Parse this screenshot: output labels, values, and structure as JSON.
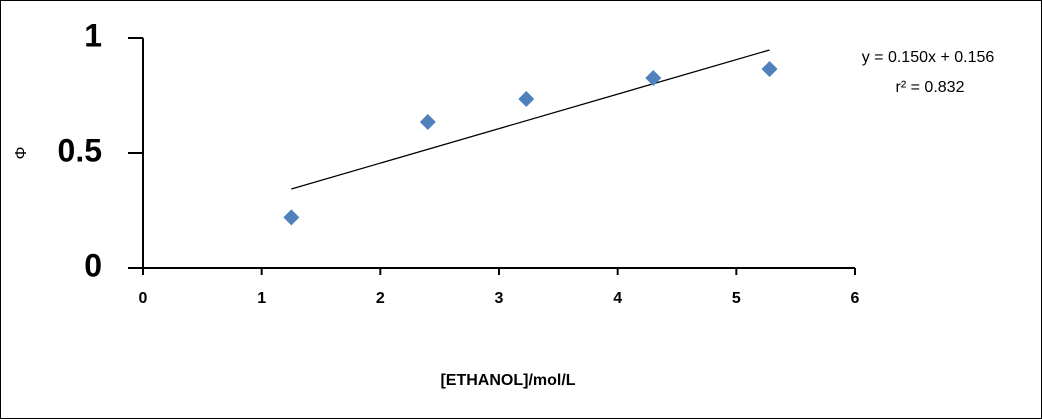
{
  "chart_data": {
    "type": "scatter",
    "x_label": "[ETHANOL]/mol/L",
    "y_label": "Φ",
    "series": [
      {
        "name": "Φ",
        "color": "#4f81bd",
        "x": [
          1.25,
          2.4,
          3.23,
          4.3,
          5.28
        ],
        "values": [
          0.22,
          0.635,
          0.735,
          0.826,
          0.865
        ]
      }
    ],
    "trendline": {
      "slope": 0.15,
      "intercept": 0.156,
      "equation": "y = 0.150x + 0.156",
      "r_squared": "r² = 0.832"
    },
    "xlim": [
      0,
      6
    ],
    "xticks": [
      0,
      1,
      2,
      3,
      4,
      5,
      6
    ],
    "ylim": [
      0,
      1
    ],
    "yticks": [
      0,
      0.5,
      1
    ],
    "legend": false,
    "grid": false
  }
}
